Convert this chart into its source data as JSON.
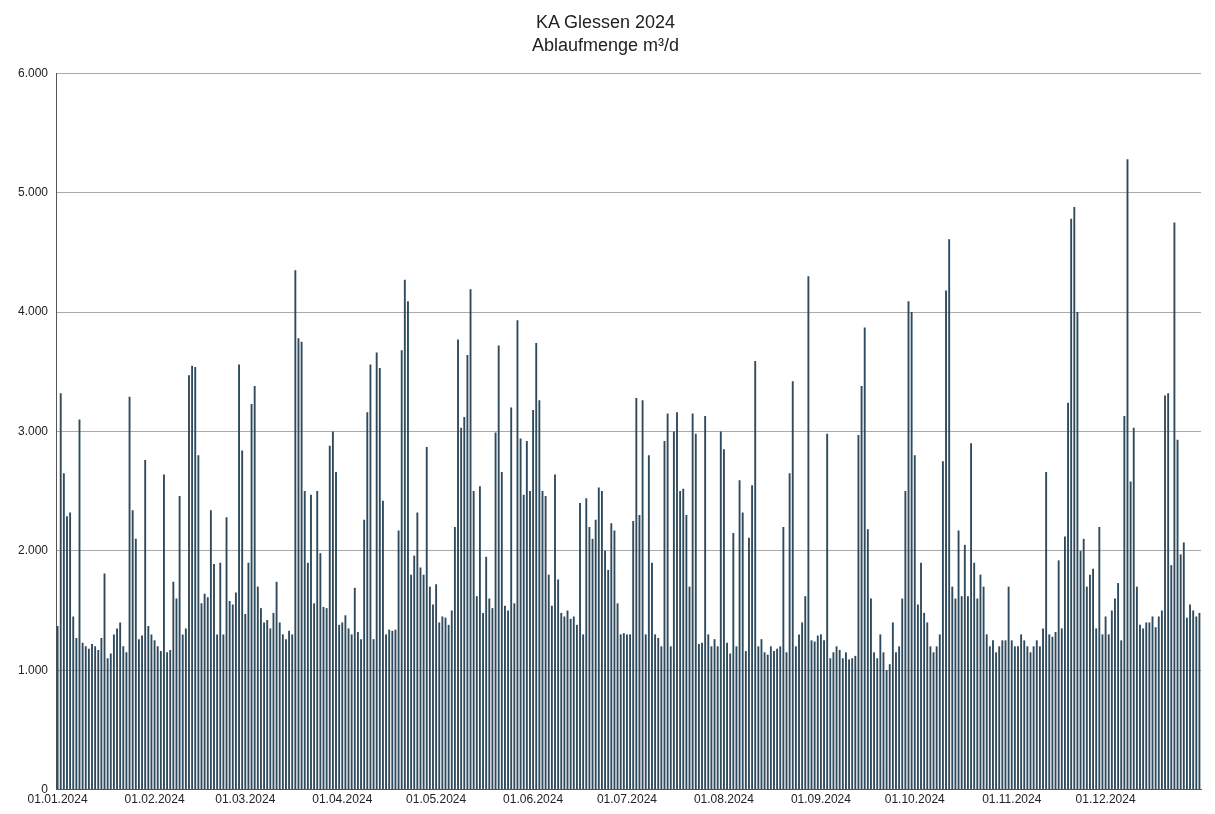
{
  "chart_data": {
    "type": "bar",
    "title": "KA Glessen 2024",
    "subtitle": "Ablaufmenge m³/d",
    "categories": [
      "01.01.2024",
      null,
      null,
      null,
      null,
      null,
      null,
      null,
      null,
      null,
      null,
      null,
      null,
      null,
      null,
      null,
      null,
      null,
      null,
      null,
      null,
      null,
      null,
      null,
      null,
      null,
      null,
      null,
      null,
      null,
      null,
      "01.02.2024",
      null,
      null,
      null,
      null,
      null,
      null,
      null,
      null,
      null,
      null,
      null,
      null,
      null,
      null,
      null,
      null,
      null,
      null,
      null,
      null,
      null,
      null,
      null,
      null,
      null,
      null,
      null,
      null,
      "01.03.2024",
      null,
      null,
      null,
      null,
      null,
      null,
      null,
      null,
      null,
      null,
      null,
      null,
      null,
      null,
      null,
      null,
      null,
      null,
      null,
      null,
      null,
      null,
      null,
      null,
      null,
      null,
      null,
      null,
      null,
      null,
      "01.04.2024",
      null,
      null,
      null,
      null,
      null,
      null,
      null,
      null,
      null,
      null,
      null,
      null,
      null,
      null,
      null,
      null,
      null,
      null,
      null,
      null,
      null,
      null,
      null,
      null,
      null,
      null,
      null,
      null,
      null,
      "01.05.2024",
      null,
      null,
      null,
      null,
      null,
      null,
      null,
      null,
      null,
      null,
      null,
      null,
      null,
      null,
      null,
      null,
      null,
      null,
      null,
      null,
      null,
      null,
      null,
      null,
      null,
      null,
      null,
      null,
      null,
      null,
      "01.06.2024",
      null,
      null,
      null,
      null,
      null,
      null,
      null,
      null,
      null,
      null,
      null,
      null,
      null,
      null,
      null,
      null,
      null,
      null,
      null,
      null,
      null,
      null,
      null,
      null,
      null,
      null,
      null,
      null,
      null,
      "01.07.2024",
      null,
      null,
      null,
      null,
      null,
      null,
      null,
      null,
      null,
      null,
      null,
      null,
      null,
      null,
      null,
      null,
      null,
      null,
      null,
      null,
      null,
      null,
      null,
      null,
      null,
      null,
      null,
      null,
      null,
      null,
      "01.08.2024",
      null,
      null,
      null,
      null,
      null,
      null,
      null,
      null,
      null,
      null,
      null,
      null,
      null,
      null,
      null,
      null,
      null,
      null,
      null,
      null,
      null,
      null,
      null,
      null,
      null,
      null,
      null,
      null,
      null,
      null,
      "01.09.2024",
      null,
      null,
      null,
      null,
      null,
      null,
      null,
      null,
      null,
      null,
      null,
      null,
      null,
      null,
      null,
      null,
      null,
      null,
      null,
      null,
      null,
      null,
      null,
      null,
      null,
      null,
      null,
      null,
      null,
      "01.10.2024",
      null,
      null,
      null,
      null,
      null,
      null,
      null,
      null,
      null,
      null,
      null,
      null,
      null,
      null,
      null,
      null,
      null,
      null,
      null,
      null,
      null,
      null,
      null,
      null,
      null,
      null,
      null,
      null,
      null,
      null,
      "01.11.2024",
      null,
      null,
      null,
      null,
      null,
      null,
      null,
      null,
      null,
      null,
      null,
      null,
      null,
      null,
      null,
      null,
      null,
      null,
      null,
      null,
      null,
      null,
      null,
      null,
      null,
      null,
      null,
      null,
      null,
      "01.12.2024",
      null,
      null,
      null,
      null,
      null,
      null,
      null,
      null,
      null,
      null,
      null,
      null,
      null,
      null,
      null,
      null,
      null,
      null,
      null,
      null,
      null,
      null,
      null,
      null,
      null,
      null,
      null,
      null,
      null,
      null
    ],
    "values": [
      1370,
      3320,
      2650,
      2290,
      2320,
      1450,
      1270,
      3100,
      1230,
      1200,
      1180,
      1220,
      1200,
      1170,
      1270,
      1810,
      1100,
      1140,
      1300,
      1350,
      1400,
      1200,
      1150,
      3290,
      2340,
      2100,
      1260,
      1290,
      2760,
      1370,
      1300,
      1250,
      1200,
      1160,
      2640,
      1150,
      1170,
      1740,
      1600,
      2460,
      1300,
      1350,
      3470,
      3550,
      3540,
      2800,
      1560,
      1640,
      1610,
      2340,
      1890,
      1300,
      1900,
      1300,
      2280,
      1580,
      1550,
      1650,
      3560,
      2840,
      1470,
      1900,
      3230,
      3380,
      1700,
      1520,
      1400,
      1420,
      1350,
      1480,
      1740,
      1400,
      1300,
      1260,
      1330,
      1300,
      4350,
      3780,
      3750,
      2500,
      1900,
      2470,
      1560,
      2500,
      1980,
      1530,
      1520,
      2880,
      3000,
      2660,
      1380,
      1400,
      1460,
      1350,
      1300,
      1690,
      1320,
      1260,
      2260,
      3160,
      3560,
      1260,
      3660,
      3530,
      2420,
      1300,
      1340,
      1330,
      1340,
      2170,
      3680,
      4270,
      4090,
      1800,
      1960,
      2320,
      1860,
      1800,
      2870,
      1700,
      1550,
      1720,
      1400,
      1450,
      1440,
      1380,
      1500,
      2200,
      3770,
      3030,
      3120,
      3640,
      4190,
      2500,
      1620,
      2540,
      1480,
      1950,
      1600,
      1520,
      2990,
      3720,
      2660,
      1540,
      1500,
      3200,
      1560,
      3930,
      2940,
      2470,
      2920,
      2500,
      3180,
      3740,
      3260,
      2500,
      2460,
      1800,
      1540,
      2640,
      1760,
      1480,
      1450,
      1500,
      1430,
      1450,
      1380,
      2400,
      1300,
      2440,
      2200,
      2100,
      2260,
      2530,
      2500,
      2000,
      1840,
      2230,
      2170,
      1560,
      1300,
      1310,
      1300,
      1300,
      2250,
      3280,
      2300,
      3260,
      1300,
      2800,
      1900,
      1300,
      1270,
      1200,
      2920,
      3150,
      1200,
      3000,
      3160,
      2500,
      2520,
      2300,
      1700,
      3150,
      2980,
      1220,
      1230,
      3130,
      1300,
      1200,
      1260,
      1200,
      3000,
      2850,
      1230,
      1140,
      2150,
      1200,
      2590,
      2320,
      1160,
      2110,
      2550,
      3590,
      1200,
      1260,
      1150,
      1130,
      1200,
      1160,
      1180,
      1200,
      2200,
      1150,
      2650,
      3420,
      1200,
      1300,
      1400,
      1620,
      4300,
      1250,
      1240,
      1290,
      1300,
      1250,
      2980,
      1100,
      1150,
      1200,
      1170,
      1100,
      1150,
      1090,
      1100,
      1120,
      2970,
      3380,
      3870,
      2180,
      1600,
      1150,
      1100,
      1300,
      1150,
      1000,
      1050,
      1400,
      1150,
      1200,
      1600,
      2500,
      4090,
      4000,
      2800,
      1550,
      1900,
      1480,
      1400,
      1200,
      1150,
      1200,
      1300,
      2750,
      4180,
      4610,
      1700,
      1600,
      2170,
      1620,
      2050,
      1620,
      2900,
      1900,
      1600,
      1800,
      1700,
      1300,
      1200,
      1250,
      1150,
      1200,
      1250,
      1250,
      1700,
      1250,
      1200,
      1200,
      1300,
      1250,
      1200,
      1150,
      1200,
      1250,
      1200,
      1350,
      2660,
      1300,
      1280,
      1320,
      1920,
      1350,
      2120,
      3240,
      4780,
      4880,
      4000,
      2000,
      2100,
      1700,
      1800,
      1850,
      1350,
      2200,
      1300,
      1450,
      1300,
      1500,
      1600,
      1730,
      1250,
      3130,
      5280,
      2580,
      3030,
      1700,
      1380,
      1350,
      1400,
      1400,
      1450,
      1360,
      1450,
      1500,
      3300,
      3320,
      1880,
      4750,
      2930,
      1970,
      2070,
      1440,
      1550,
      1500,
      1450,
      1480
    ],
    "color": "#2e4a5c",
    "ylim": [
      0,
      6000
    ],
    "yticks": [
      {
        "value": 0,
        "label": "0"
      },
      {
        "value": 1000,
        "label": "1.000"
      },
      {
        "value": 2000,
        "label": "2.000"
      },
      {
        "value": 3000,
        "label": "3.000"
      },
      {
        "value": 4000,
        "label": "4.000"
      },
      {
        "value": 5000,
        "label": "5.000"
      },
      {
        "value": 6000,
        "label": "6.000"
      }
    ],
    "grid": "y"
  }
}
